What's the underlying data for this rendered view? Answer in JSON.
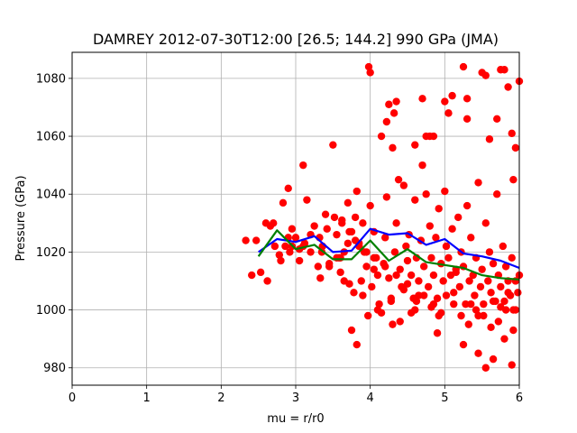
{
  "chart_data": {
    "type": "scatter",
    "title": "DAMREY 2012-07-30T12:00 [26.5; 144.2] 990 GPa (JMA)",
    "xlabel": "mu = r/r0",
    "ylabel": "Pressure (GPa)",
    "xlim": [
      0,
      6
    ],
    "ylim": [
      974,
      1089
    ],
    "xticks": [
      "0",
      "1",
      "2",
      "3",
      "4",
      "5",
      "6"
    ],
    "yticks": [
      "980",
      "1000",
      "1020",
      "1040",
      "1060",
      "1080"
    ],
    "grid": true,
    "colors": {
      "points": "#ff0000",
      "line1": "#0000ff",
      "line2": "#008000"
    },
    "scatter": {
      "x": [
        2.33,
        2.41,
        2.47,
        2.53,
        2.6,
        2.62,
        2.66,
        2.7,
        2.72,
        2.78,
        2.8,
        2.83,
        2.86,
        2.9,
        2.92,
        2.95,
        3.0,
        3.05,
        3.1,
        3.12,
        3.15,
        3.2,
        3.25,
        3.3,
        3.33,
        3.36,
        3.4,
        3.45,
        3.5,
        3.55,
        3.58,
        3.6,
        3.62,
        3.65,
        3.7,
        3.72,
        3.75,
        3.78,
        3.8,
        3.82,
        3.85,
        3.88,
        3.9,
        3.92,
        3.95,
        3.97,
        4.0,
        4.02,
        4.05,
        4.08,
        4.1,
        4.12,
        4.15,
        4.18,
        4.2,
        4.22,
        4.25,
        4.28,
        4.3,
        4.33,
        4.35,
        4.38,
        4.4,
        4.42,
        4.45,
        4.48,
        4.5,
        4.52,
        4.55,
        4.58,
        4.6,
        4.62,
        4.65,
        4.68,
        4.7,
        4.72,
        4.75,
        4.78,
        4.8,
        4.82,
        4.85,
        4.88,
        4.9,
        4.92,
        4.95,
        4.98,
        5.0,
        5.02,
        5.05,
        5.08,
        5.1,
        5.12,
        5.15,
        5.18,
        5.2,
        5.22,
        5.25,
        5.28,
        5.3,
        5.33,
        5.35,
        5.38,
        5.4,
        5.42,
        5.45,
        5.48,
        5.5,
        5.52,
        5.55,
        5.58,
        5.6,
        5.62,
        5.65,
        5.68,
        5.7,
        5.72,
        5.75,
        5.78,
        5.8,
        5.82,
        5.85,
        5.88,
        5.9,
        5.92,
        5.95,
        5.98,
        6.0,
        3.98,
        4.0,
        4.22,
        4.25,
        4.32,
        4.35,
        4.6,
        4.7,
        4.75,
        4.8,
        4.85,
        5.0,
        5.05,
        5.1,
        5.25,
        5.3,
        5.3,
        5.5,
        5.55,
        5.6,
        5.7,
        5.75,
        5.8,
        5.85,
        5.9,
        6.0,
        5.95,
        5.92,
        3.82,
        5.25,
        5.45,
        5.55,
        5.65,
        5.8,
        5.9,
        4.9,
        4.4,
        4.6,
        4.3,
        4.15,
        3.75,
        3.55,
        3.45,
        3.2,
        3.1,
        2.95,
        2.9,
        3.05,
        3.35,
        3.6,
        3.7,
        3.65,
        3.9,
        4.05,
        4.1,
        4.28,
        4.45,
        4.55,
        4.62,
        4.72,
        4.82,
        4.92,
        5.02,
        5.12,
        5.22,
        5.32,
        5.42,
        5.52,
        5.62,
        5.72,
        5.82,
        5.92,
        5.15,
        5.35,
        5.45,
        5.65,
        5.75,
        5.85,
        5.95,
        4.95,
        4.85,
        4.65,
        4.5,
        4.35,
        4.2,
        4.05,
        3.95,
        3.85,
        3.8,
        3.72,
        3.62,
        3.52,
        3.42,
        3.32
      ],
      "y": [
        1024,
        1012,
        1024,
        1013,
        1030,
        1010,
        1029,
        1030,
        1022,
        1019,
        1017,
        1037,
        1022,
        1042,
        1020,
        1022,
        1025,
        1017,
        1050,
        1023,
        1038,
        1020,
        1029,
        1015,
        1011,
        1022,
        1033,
        1015,
        1057,
        1026,
        1018,
        1013,
        1031,
        1020,
        1037,
        1009,
        1027,
        1006,
        1032,
        988,
        1023,
        1010,
        1030,
        1020,
        1015,
        998,
        1036,
        1008,
        1027,
        1018,
        1012,
        1002,
        1060,
        1016,
        1025,
        1039,
        1011,
        1004,
        1056,
        1020,
        1030,
        1045,
        1014,
        1008,
        1043,
        1022,
        1017,
        1026,
        1012,
        1004,
        1038,
        1018,
        1010,
        1024,
        1050,
        1015,
        1040,
        1008,
        1029,
        1018,
        1012,
        1025,
        1004,
        1035,
        1016,
        1010,
        1041,
        1022,
        1018,
        1012,
        1028,
        1006,
        1014,
        1032,
        1008,
        1020,
        1015,
        1002,
        1036,
        1010,
        1025,
        1012,
        1005,
        1018,
        1044,
        1008,
        1014,
        1002,
        1030,
        1010,
        1020,
        1006,
        1016,
        1003,
        1040,
        1012,
        1008,
        1022,
        1003,
        1015,
        1010,
        1005,
        1018,
        1000,
        1010,
        1006,
        1012,
        1084,
        1082,
        1065,
        1071,
        1068,
        1072,
        1057,
        1073,
        1060,
        1060,
        1060,
        1072,
        1068,
        1074,
        1084,
        1073,
        1066,
        1082,
        1081,
        1059,
        1066,
        1083,
        1083,
        1077,
        1061,
        1079,
        1056,
        1045,
        1041,
        988,
        985,
        980,
        983,
        990,
        981,
        992,
        996,
        1000,
        995,
        999,
        993,
        1018,
        1016,
        1026,
        1022,
        1028,
        1025,
        1021,
        1020,
        1018,
        1023,
        1010,
        1005,
        1014,
        1000,
        1003,
        1007,
        999,
        1003,
        1005,
        1001,
        998,
        1005,
        1002,
        998,
        995,
        1000,
        998,
        994,
        996,
        1000,
        993,
        1013,
        1002,
        998,
        1003,
        1001,
        1006,
        1000,
        999,
        1002,
        1005,
        1009,
        1012,
        1015,
        1018,
        1020,
        1022,
        1024,
        1027,
        1030,
        1032,
        1028,
        1025
      ]
    },
    "series": [
      {
        "x": [
          2.5,
          2.75,
          3.0,
          3.25,
          3.5,
          3.75,
          4.0,
          4.25,
          4.5,
          4.75,
          5.0,
          5.25,
          5.5,
          5.75,
          6.0
        ],
        "y": [
          1020,
          1024.5,
          1023.5,
          1025.5,
          1020,
          1020.5,
          1028,
          1026,
          1026.5,
          1022.5,
          1024.5,
          1019.5,
          1018.5,
          1017,
          1014.5
        ]
      },
      {
        "x": [
          2.5,
          2.75,
          3.0,
          3.25,
          3.5,
          3.75,
          4.0,
          4.25,
          4.5,
          4.75,
          5.0,
          5.25,
          5.5,
          5.75,
          6.0
        ],
        "y": [
          1018.5,
          1027.5,
          1021,
          1022.5,
          1017.5,
          1017.5,
          1024,
          1017,
          1021,
          1016.5,
          1015.5,
          1014.5,
          1012,
          1011,
          1010.5
        ]
      }
    ]
  }
}
